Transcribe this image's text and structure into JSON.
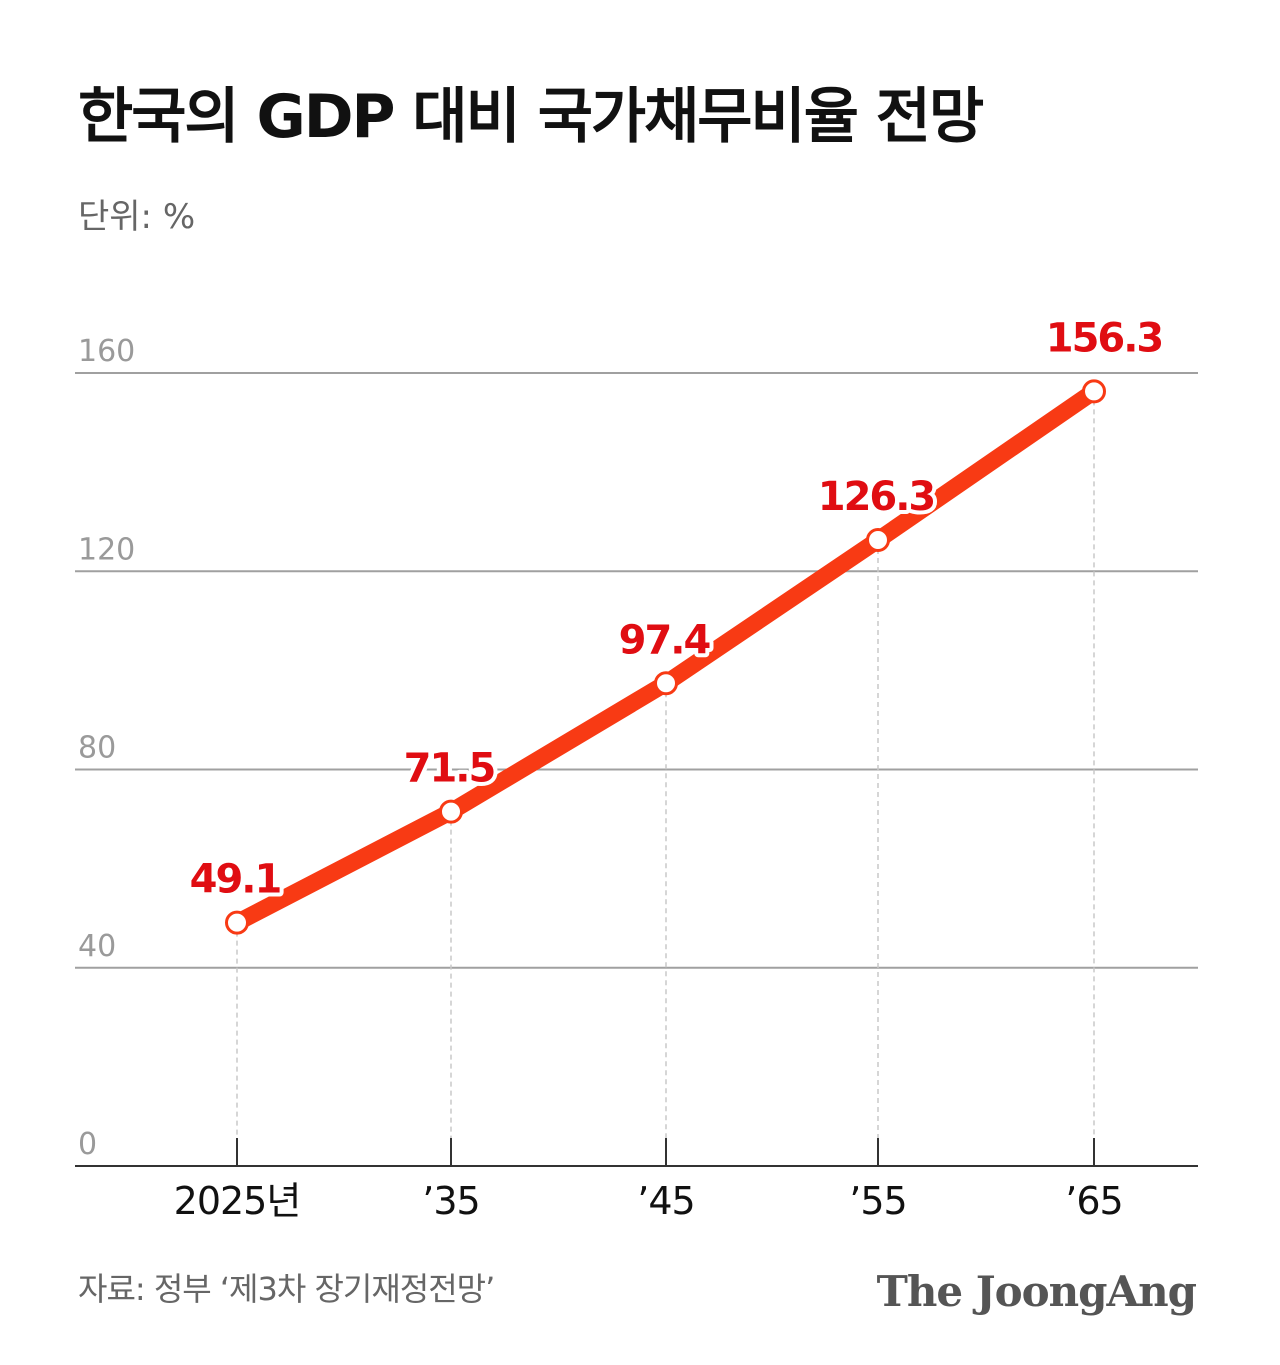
{
  "chart_data": {
    "type": "line",
    "title": "한국의 GDP 대비 국가채무비율 전망",
    "unit": "단위: %",
    "categories": [
      "2025년",
      "’35",
      "’45",
      "’55",
      "’65"
    ],
    "values": [
      49.1,
      71.5,
      97.4,
      126.3,
      156.3
    ],
    "color": "#f83a14",
    "label_color": "#e00d12",
    "ylim": [
      0,
      160
    ],
    "yticks": [
      0,
      40,
      80,
      120,
      160
    ],
    "grid": true,
    "source": "자료: 정부 ‘제3차 장기재정전망’",
    "credit": "The JoongAng"
  }
}
